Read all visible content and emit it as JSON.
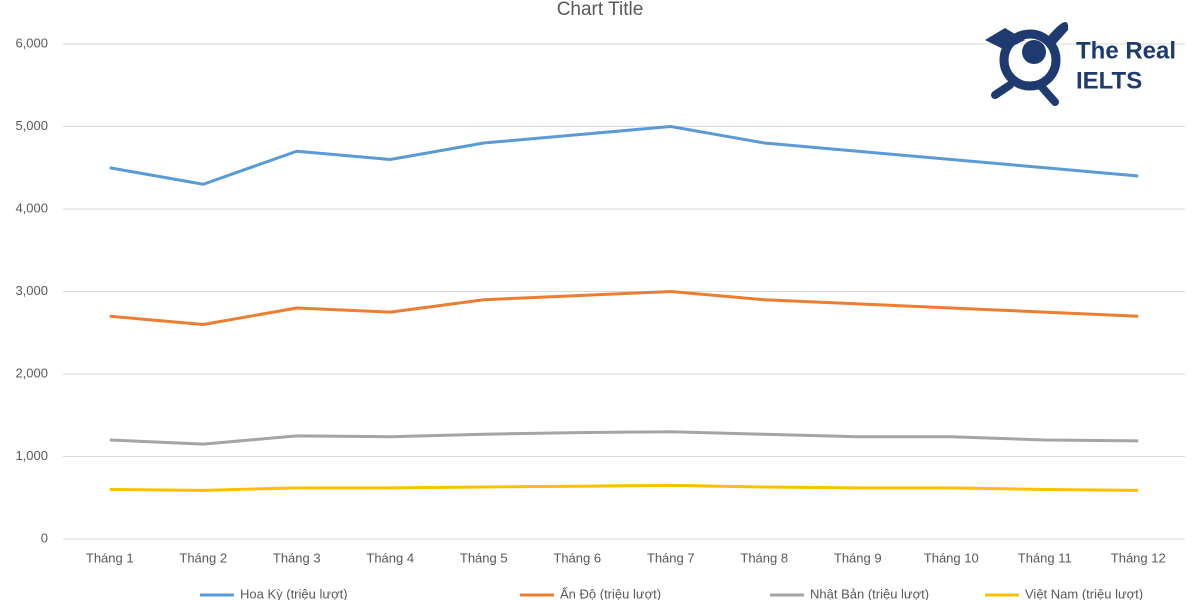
{
  "chart_data": {
    "type": "line",
    "title": "Chart Title",
    "categories": [
      "Tháng 1",
      "Tháng 2",
      "Tháng 3",
      "Tháng 4",
      "Tháng 5",
      "Tháng 6",
      "Tháng 7",
      "Tháng 8",
      "Tháng 9",
      "Tháng 10",
      "Tháng 11",
      "Tháng 12"
    ],
    "series": [
      {
        "name": "Hoa Kỳ (triệu lượt)",
        "color": "#5b9bd5",
        "values": [
          4500,
          4300,
          4700,
          4600,
          4800,
          4900,
          5000,
          4800,
          4700,
          4600,
          4500,
          4400
        ]
      },
      {
        "name": "Ấn Độ (triệu lượt)",
        "color": "#ed7d31",
        "values": [
          2700,
          2600,
          2800,
          2750,
          2900,
          2950,
          3000,
          2900,
          2850,
          2800,
          2750,
          2700
        ]
      },
      {
        "name": "Nhật Bản (triệu lượt)",
        "color": "#a5a5a5",
        "values": [
          1200,
          1150,
          1250,
          1240,
          1270,
          1290,
          1300,
          1270,
          1240,
          1240,
          1200,
          1190
        ]
      },
      {
        "name": "Việt Nam (triệu lượt)",
        "color": "#ffc000",
        "values": [
          600,
          590,
          620,
          620,
          630,
          640,
          650,
          630,
          620,
          620,
          600,
          590
        ]
      }
    ],
    "ylim": [
      0,
      6000
    ],
    "yticks": [
      0,
      {
        "value": 1000,
        "label": "1,000"
      },
      {
        "value": 2000,
        "label": "2,000"
      },
      {
        "value": 3000,
        "label": "3,000"
      },
      {
        "value": 4000,
        "label": "4,000"
      },
      {
        "value": 5000,
        "label": "5,000"
      },
      {
        "value": 6000,
        "label": "6,000"
      }
    ],
    "grid": true,
    "legend": "bottom"
  },
  "logo": {
    "line1": "The Real",
    "line2": "IELTS"
  }
}
